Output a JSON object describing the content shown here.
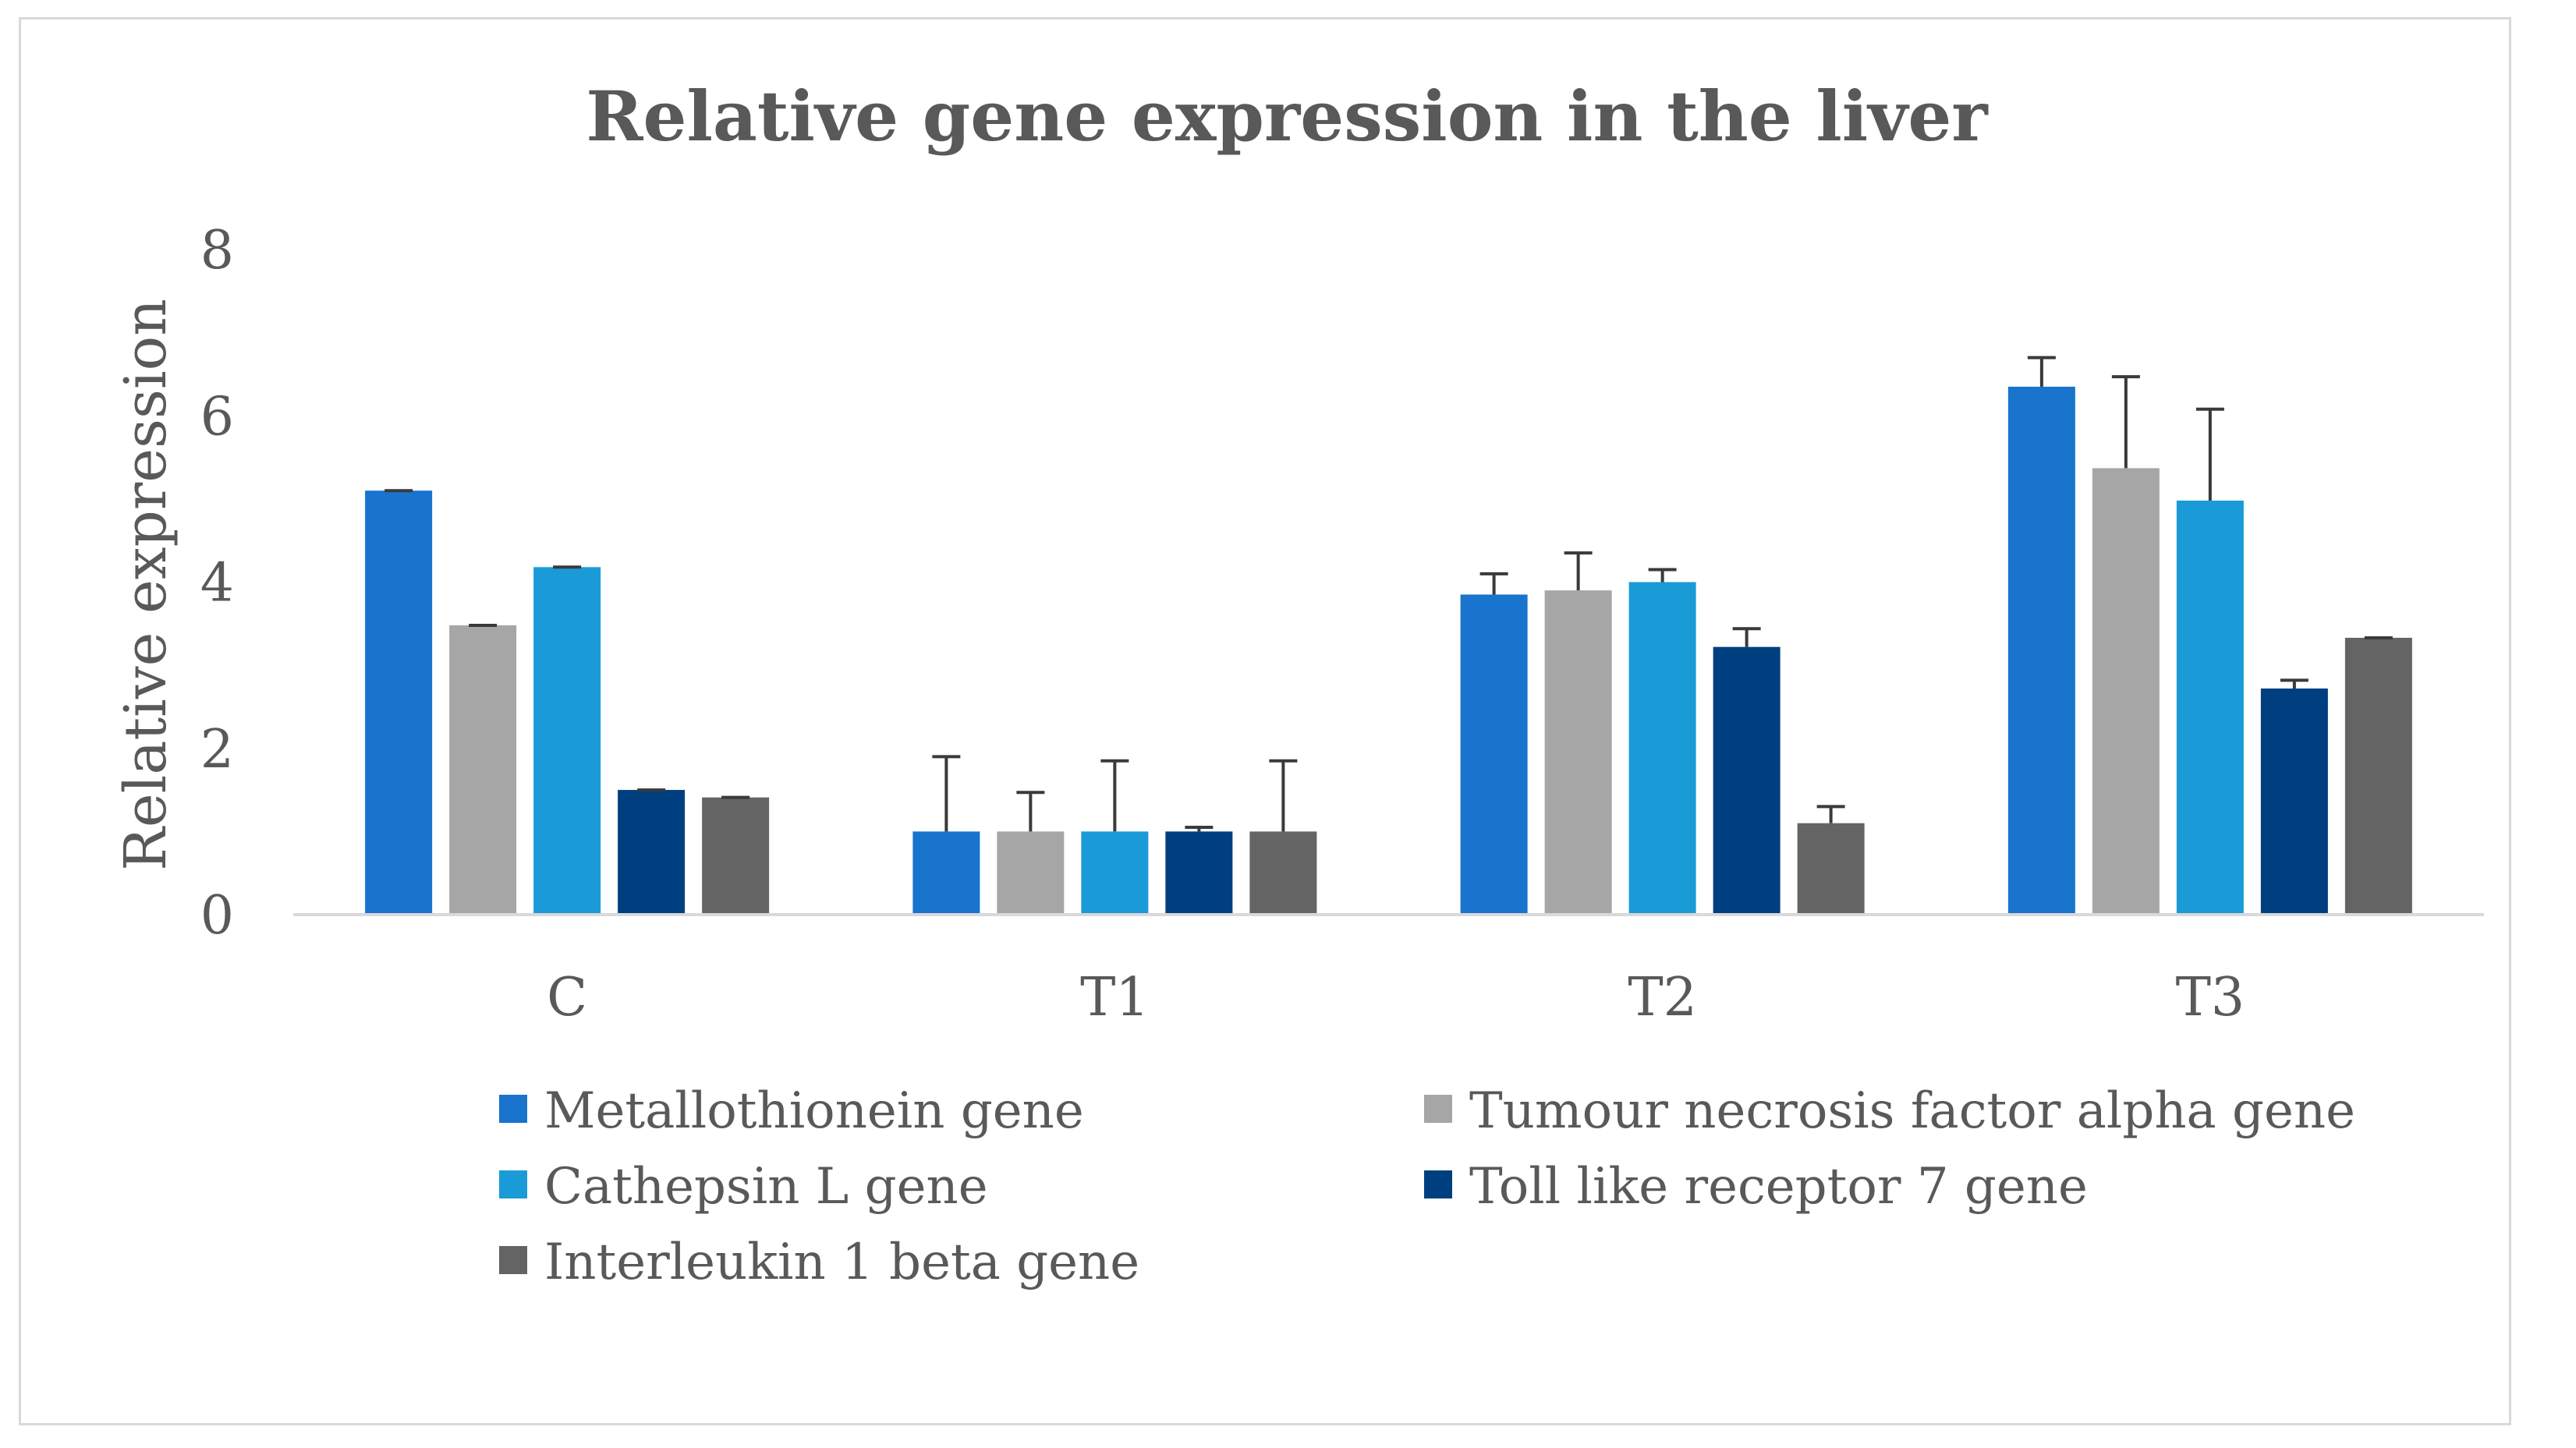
{
  "chart_data": {
    "type": "bar",
    "title": "Relative gene expression in the liver",
    "xlabel": "",
    "ylabel": "Relative expression",
    "ylim": [
      0,
      8
    ],
    "yticks": [
      0,
      2,
      4,
      6,
      8
    ],
    "categories": [
      "C",
      "T1",
      "T2",
      "T3"
    ],
    "legend_position": "bottom",
    "series": [
      {
        "name": "Metallothionein gene",
        "color": "#1874cd",
        "values": [
          5.1,
          1.0,
          3.85,
          6.35
        ],
        "errors": [
          0.0,
          0.9,
          0.25,
          0.35
        ]
      },
      {
        "name": "Tumour necrosis factor alpha gene",
        "color": "#a6a6a6",
        "values": [
          3.48,
          1.0,
          3.9,
          5.37
        ],
        "errors": [
          0.0,
          0.47,
          0.45,
          1.1
        ]
      },
      {
        "name": "Cathepsin L gene",
        "color": "#1a9bd7",
        "values": [
          4.18,
          1.0,
          4.0,
          4.98
        ],
        "errors": [
          0.0,
          0.85,
          0.15,
          1.1
        ]
      },
      {
        "name": "Toll like receptor 7 gene",
        "color": "#003f7f",
        "values": [
          1.5,
          1.0,
          3.22,
          2.72
        ],
        "errors": [
          0.0,
          0.05,
          0.22,
          0.1
        ]
      },
      {
        "name": "Interleukin 1 beta gene",
        "color": "#646464",
        "values": [
          1.41,
          1.0,
          1.1,
          3.33
        ],
        "errors": [
          0.0,
          0.85,
          0.2,
          0.0
        ]
      }
    ]
  }
}
